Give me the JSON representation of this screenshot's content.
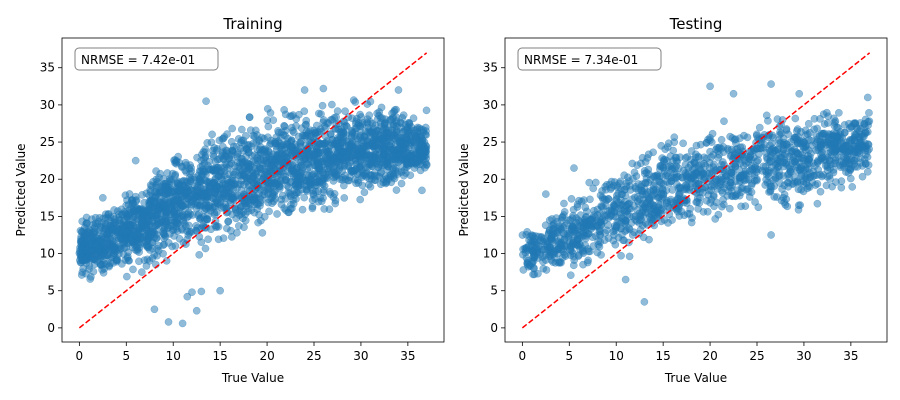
{
  "chart_data": [
    {
      "type": "scatter",
      "title": "Training",
      "xlabel": "True Value",
      "ylabel": "Predicted Value",
      "annotation": "NRMSE = 7.42e-01",
      "xlim": [
        -1.85,
        38.85
      ],
      "ylim": [
        -1.9,
        39.0
      ],
      "xticks": [
        0,
        5,
        10,
        15,
        20,
        25,
        30,
        35
      ],
      "yticks": [
        0,
        5,
        10,
        15,
        20,
        25,
        30,
        35
      ],
      "point_color": "#1f77b4",
      "point_alpha": 0.5,
      "reference_line": {
        "x": [
          0,
          37
        ],
        "y": [
          0,
          37
        ],
        "color": "#ff0000",
        "style": "dashed"
      },
      "density_band": {
        "x": [
          0,
          5,
          10,
          15,
          20,
          25,
          30,
          35,
          37
        ],
        "y_low": [
          5.5,
          6.0,
          8.0,
          10.0,
          12.0,
          14.0,
          16.0,
          18.0,
          19.5
        ],
        "y_high": [
          15.5,
          19.0,
          25.0,
          28.5,
          30.5,
          31.5,
          31.5,
          30.5,
          30.0
        ]
      },
      "outliers": [
        {
          "x": 8,
          "y": 2.5
        },
        {
          "x": 9.5,
          "y": 0.8
        },
        {
          "x": 11,
          "y": 0.6
        },
        {
          "x": 11.5,
          "y": 4.2
        },
        {
          "x": 12,
          "y": 4.8
        },
        {
          "x": 12.5,
          "y": 2.3
        },
        {
          "x": 13,
          "y": 4.9
        },
        {
          "x": 15,
          "y": 5.0
        },
        {
          "x": 13.5,
          "y": 30.5
        },
        {
          "x": 24,
          "y": 32.0
        },
        {
          "x": 26,
          "y": 32.2
        },
        {
          "x": 34,
          "y": 32.0
        },
        {
          "x": 36.5,
          "y": 18.5
        },
        {
          "x": 6,
          "y": 22.5
        },
        {
          "x": 2.5,
          "y": 17.5
        }
      ]
    },
    {
      "type": "scatter",
      "title": "Testing",
      "xlabel": "True Value",
      "ylabel": "Predicted Value",
      "annotation": "NRMSE = 7.34e-01",
      "xlim": [
        -1.85,
        38.85
      ],
      "ylim": [
        -1.9,
        39.0
      ],
      "xticks": [
        0,
        5,
        10,
        15,
        20,
        25,
        30,
        35
      ],
      "yticks": [
        0,
        5,
        10,
        15,
        20,
        25,
        30,
        35
      ],
      "point_color": "#1f77b4",
      "point_alpha": 0.5,
      "reference_line": {
        "x": [
          0,
          37
        ],
        "y": [
          0,
          37
        ],
        "color": "#ff0000",
        "style": "dashed"
      },
      "density_band": {
        "x": [
          0,
          5,
          10,
          15,
          20,
          25,
          30,
          35,
          37
        ],
        "y_low": [
          5.5,
          6.5,
          8.0,
          10.5,
          12.5,
          13.5,
          15.0,
          18.0,
          20.5
        ],
        "y_high": [
          14.5,
          18.0,
          23.0,
          26.5,
          29.0,
          30.5,
          30.5,
          30.0,
          31.0
        ]
      },
      "outliers": [
        {
          "x": 13,
          "y": 3.5
        },
        {
          "x": 20,
          "y": 32.5
        },
        {
          "x": 22.5,
          "y": 31.5
        },
        {
          "x": 26.5,
          "y": 32.8
        },
        {
          "x": 29.5,
          "y": 31.5
        },
        {
          "x": 36.8,
          "y": 31.0
        },
        {
          "x": 36.8,
          "y": 21.0
        },
        {
          "x": 33,
          "y": 19.0
        },
        {
          "x": 26.5,
          "y": 12.5
        },
        {
          "x": 5.5,
          "y": 21.5
        },
        {
          "x": 2.5,
          "y": 18.0
        },
        {
          "x": 11,
          "y": 6.5
        }
      ]
    }
  ]
}
